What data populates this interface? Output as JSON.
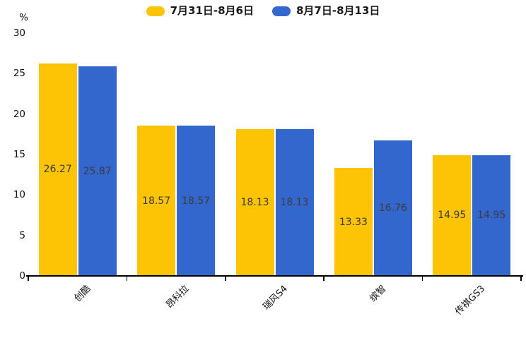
{
  "chart_data": {
    "type": "bar",
    "title": "",
    "categories": [
      "创酷",
      "昂科拉",
      "瑞风S4",
      "缤智",
      "传祺GS3"
    ],
    "series": [
      {
        "name": "7月31日-8月6日",
        "color": "#FCC405",
        "values": [
          26.27,
          18.57,
          18.13,
          13.33,
          14.95
        ]
      },
      {
        "name": "8月7日-8月13日",
        "color": "#3467CD",
        "values": [
          25.87,
          18.57,
          18.13,
          16.76,
          14.95
        ]
      }
    ],
    "xlabel": "",
    "ylabel": "%",
    "yticks": [
      0,
      5,
      10,
      15,
      20,
      25,
      30
    ],
    "ylim": [
      0,
      30
    ],
    "grid": false,
    "legend_position": "top",
    "value_labels": "centered-inside-bars",
    "category_label_rotation_deg": -45
  },
  "colors": {
    "background": "#ffffff",
    "axis": "#000000",
    "tick_text": "#111111",
    "value_label_text": "#3b3b3b",
    "legend_text": "#1a1a1a"
  }
}
